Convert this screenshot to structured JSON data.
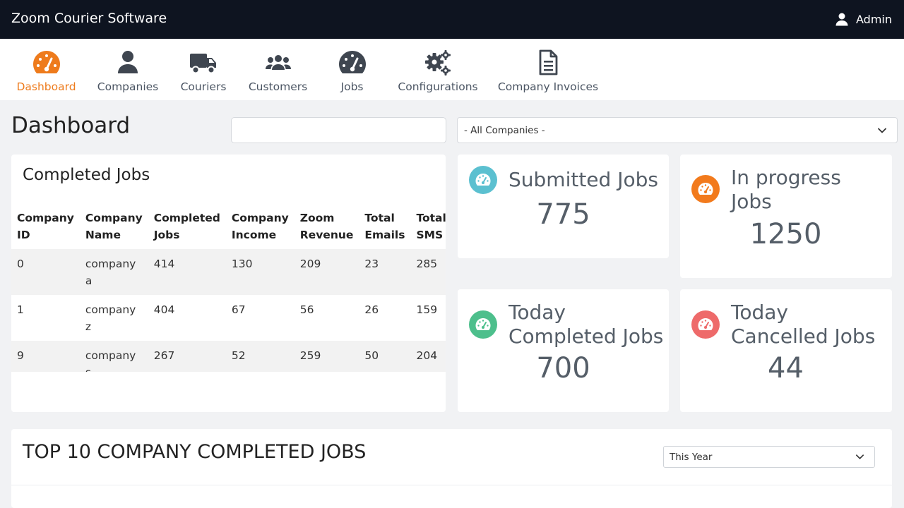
{
  "app": {
    "title": "Zoom Courier Software",
    "user": "Admin"
  },
  "nav": {
    "items": [
      {
        "label": "Dashboard",
        "icon": "tachometer-icon",
        "active": true
      },
      {
        "label": "Companies",
        "icon": "user-icon"
      },
      {
        "label": "Couriers",
        "icon": "truck-icon"
      },
      {
        "label": "Customers",
        "icon": "users-icon"
      },
      {
        "label": "Jobs",
        "icon": "tachometer-icon"
      },
      {
        "label": "Configurations",
        "icon": "gears-icon"
      },
      {
        "label": "Company Invoices",
        "icon": "file-invoice-icon"
      }
    ]
  },
  "colors": {
    "topbar": "#0e1420",
    "accent": "#ee7b1c",
    "submitted": "#5bc0d0",
    "inprogress": "#f27a1c",
    "completed": "#4dbf8c",
    "cancelled": "#ee6a6a"
  },
  "page": {
    "title": "Dashboard",
    "search_value": "",
    "company_filter": "- All Companies -"
  },
  "completed_jobs": {
    "title": "Completed Jobs",
    "headers": [
      [
        "Company",
        "ID"
      ],
      [
        "Company",
        "Name"
      ],
      [
        "Completed",
        "Jobs"
      ],
      [
        "Company",
        "Income"
      ],
      [
        "Zoom",
        "Revenue"
      ],
      [
        "Total",
        "Emails"
      ],
      [
        "Total",
        "SMS"
      ]
    ],
    "rows": [
      [
        "0",
        "company a",
        "414",
        "130",
        "209",
        "23",
        "285"
      ],
      [
        "1",
        "company z",
        "404",
        "67",
        "56",
        "26",
        "159"
      ],
      [
        "9",
        "company s",
        "267",
        "52",
        "259",
        "50",
        "204"
      ]
    ]
  },
  "stats": {
    "submitted": {
      "label": "Submitted Jobs",
      "value": "775"
    },
    "inprogress": {
      "label": "In progress Jobs",
      "value": "1250"
    },
    "today_completed": {
      "label": "Today Completed Jobs",
      "value": "700"
    },
    "today_cancelled": {
      "label": "Today Cancelled Jobs",
      "value": "44"
    }
  },
  "top10": {
    "title": "TOP 10 COMPANY COMPLETED JOBS",
    "period": "This Year"
  }
}
